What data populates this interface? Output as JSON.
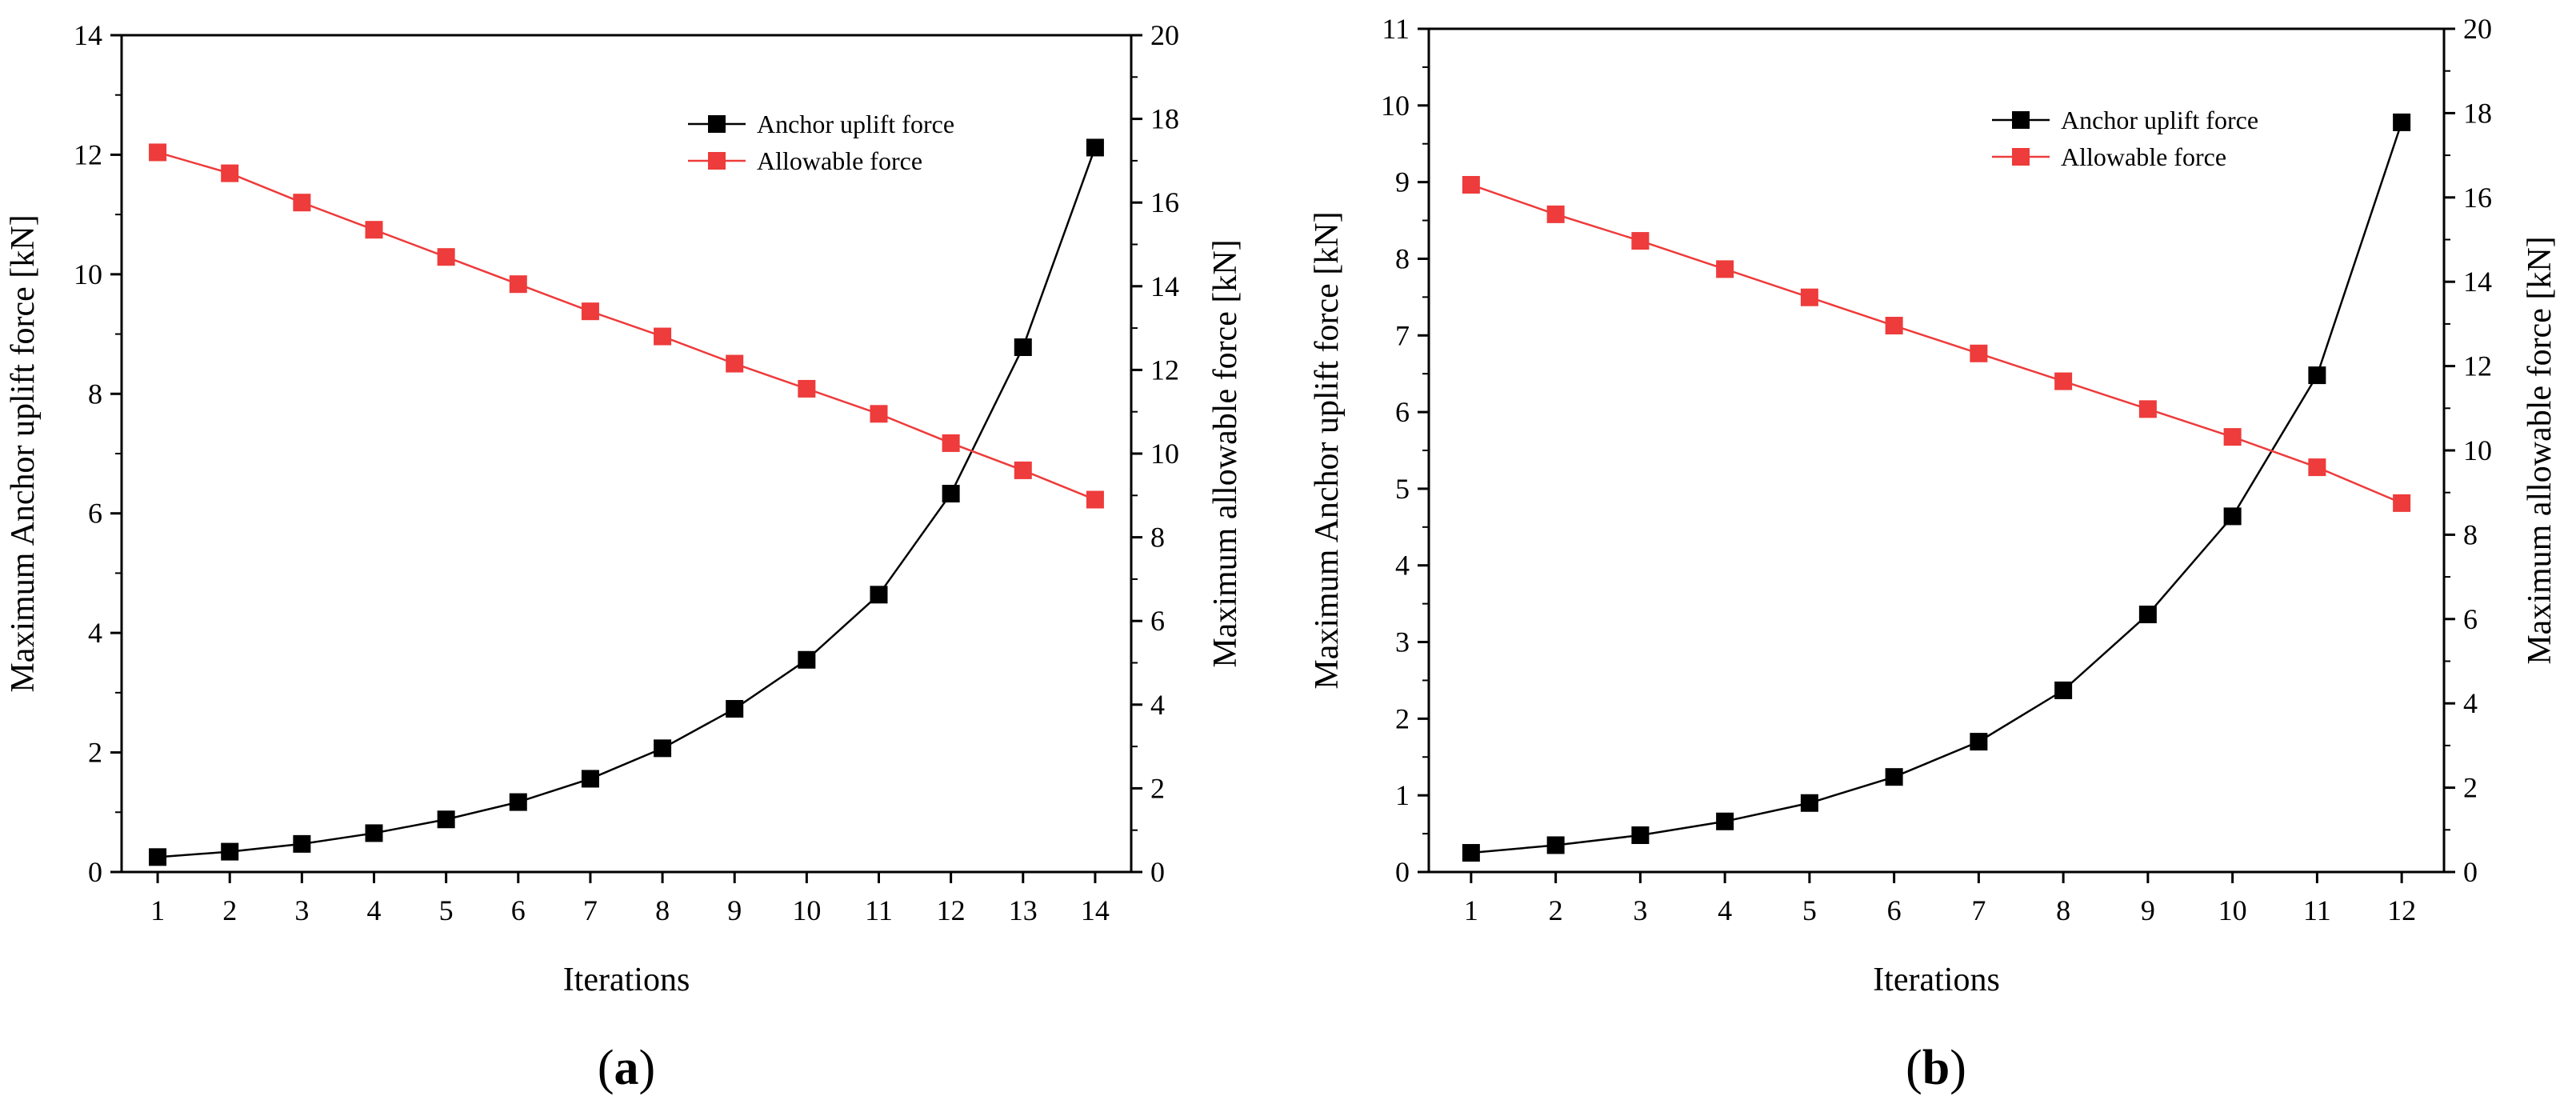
{
  "chart_data": [
    {
      "type": "line",
      "panel_label": "a",
      "xlabel": "Iterations",
      "ylabel_left": "Maximum Anchor uplift force [kN]",
      "ylabel_right": "Maximum allowable force [kN]",
      "x": [
        1,
        2,
        3,
        4,
        5,
        6,
        7,
        8,
        9,
        10,
        11,
        12,
        13,
        14
      ],
      "xlim": [
        0.5,
        14.5
      ],
      "ylim_left": [
        0,
        14
      ],
      "ylim_right": [
        0,
        20
      ],
      "yticks_left": [
        0,
        2,
        4,
        6,
        8,
        10,
        12,
        14
      ],
      "yticks_right": [
        0,
        2,
        4,
        6,
        8,
        10,
        12,
        14,
        16,
        18,
        20
      ],
      "legend_position": "top-right",
      "series": [
        {
          "name": "Anchor uplift force",
          "axis": "left",
          "color": "#000000",
          "marker": "square",
          "values": [
            0.25,
            0.34,
            0.47,
            0.65,
            0.88,
            1.17,
            1.56,
            2.07,
            2.73,
            3.55,
            4.64,
            6.33,
            8.78,
            12.12
          ]
        },
        {
          "name": "Allowable force",
          "axis": "right",
          "color": "#ee3b3b",
          "marker": "square",
          "values": [
            17.2,
            16.7,
            16.0,
            15.35,
            14.7,
            14.05,
            13.4,
            12.8,
            12.15,
            11.55,
            10.95,
            10.25,
            9.6,
            8.9
          ]
        }
      ]
    },
    {
      "type": "line",
      "panel_label": "b",
      "xlabel": "Iterations",
      "ylabel_left": "Maximum Anchor uplift force [kN]",
      "ylabel_right": "Maximum allowable force [kN]",
      "x": [
        1,
        2,
        3,
        4,
        5,
        6,
        7,
        8,
        9,
        10,
        11,
        12
      ],
      "xlim": [
        0.5,
        12.5
      ],
      "ylim_left": [
        0,
        11
      ],
      "ylim_right": [
        0,
        20
      ],
      "yticks_left": [
        0,
        1,
        2,
        3,
        4,
        5,
        6,
        7,
        8,
        9,
        10,
        11
      ],
      "yticks_right": [
        0,
        2,
        4,
        6,
        8,
        10,
        12,
        14,
        16,
        18,
        20
      ],
      "legend_position": "top-right",
      "series": [
        {
          "name": "Anchor uplift force",
          "axis": "left",
          "color": "#000000",
          "marker": "square",
          "values": [
            0.25,
            0.35,
            0.48,
            0.66,
            0.9,
            1.24,
            1.7,
            2.37,
            3.36,
            4.64,
            6.48,
            9.78
          ]
        },
        {
          "name": "Allowable force",
          "axis": "right",
          "color": "#ee3b3b",
          "marker": "square",
          "values": [
            16.3,
            15.6,
            14.97,
            14.3,
            13.63,
            12.96,
            12.3,
            11.64,
            10.98,
            10.32,
            9.6,
            8.75
          ]
        }
      ]
    }
  ]
}
